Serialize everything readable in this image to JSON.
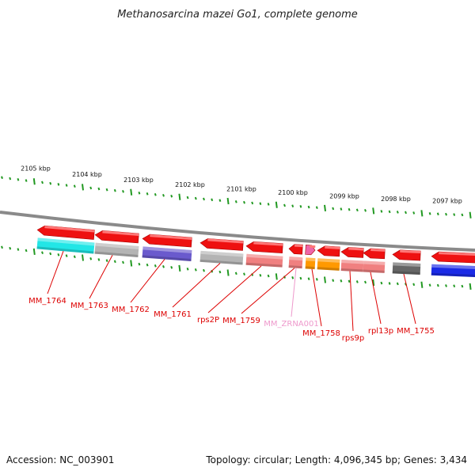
{
  "title": "Methanosarcina mazei Go1, complete genome",
  "footer": {
    "accession": "Accession: NC_003901",
    "summary": "Topology: circular; Length: 4,096,345 bp; Genes: 3,434"
  },
  "colors": {
    "label_red": "#dd0000",
    "label_pink": "#ee99cc",
    "tick_green": "#229922",
    "backbone_gray": "#888888",
    "arrow_red": "#ee1111"
  },
  "scale": {
    "labels": [
      "2105 kbp",
      "2104 kbp",
      "2103 kbp",
      "2102 kbp",
      "2101 kbp",
      "2100 kbp",
      "2099 kbp",
      "2098 kbp",
      "2097 kbp"
    ]
  },
  "genes": [
    {
      "label": "MM_1764",
      "cog_color": "#22e6e6",
      "label_color": "#dd0000"
    },
    {
      "label": "MM_1763",
      "cog_color": "#b4b4b4",
      "label_color": "#dd0000"
    },
    {
      "label": "MM_1762",
      "cog_color": "#6a5acd",
      "label_color": "#dd0000"
    },
    {
      "label": "MM_1761",
      "cog_color": "#b4b4b4",
      "label_color": "#dd0000"
    },
    {
      "label": "rps2P",
      "cog_color": "#f08080",
      "label_color": "#dd0000"
    },
    {
      "label": "MM_1759",
      "cog_color": "#f08080",
      "label_color": "#dd0000"
    },
    {
      "label": "MM_ZRNA001",
      "cog_color": "#ff9900",
      "label_color": "#ee99cc"
    },
    {
      "label": "MM_1758",
      "cog_color": "#ff9900",
      "label_color": "#dd0000"
    },
    {
      "label": "rps9p",
      "cog_color": "#f08080",
      "label_color": "#dd0000"
    },
    {
      "label": "rpl13p",
      "cog_color": "#f08080",
      "label_color": "#dd0000"
    },
    {
      "label": "MM_1755",
      "cog_color": "#666666",
      "label_color": "#dd0000"
    },
    {
      "label": "",
      "cog_color": "#1a2ae6",
      "label_color": "#dd0000"
    }
  ]
}
